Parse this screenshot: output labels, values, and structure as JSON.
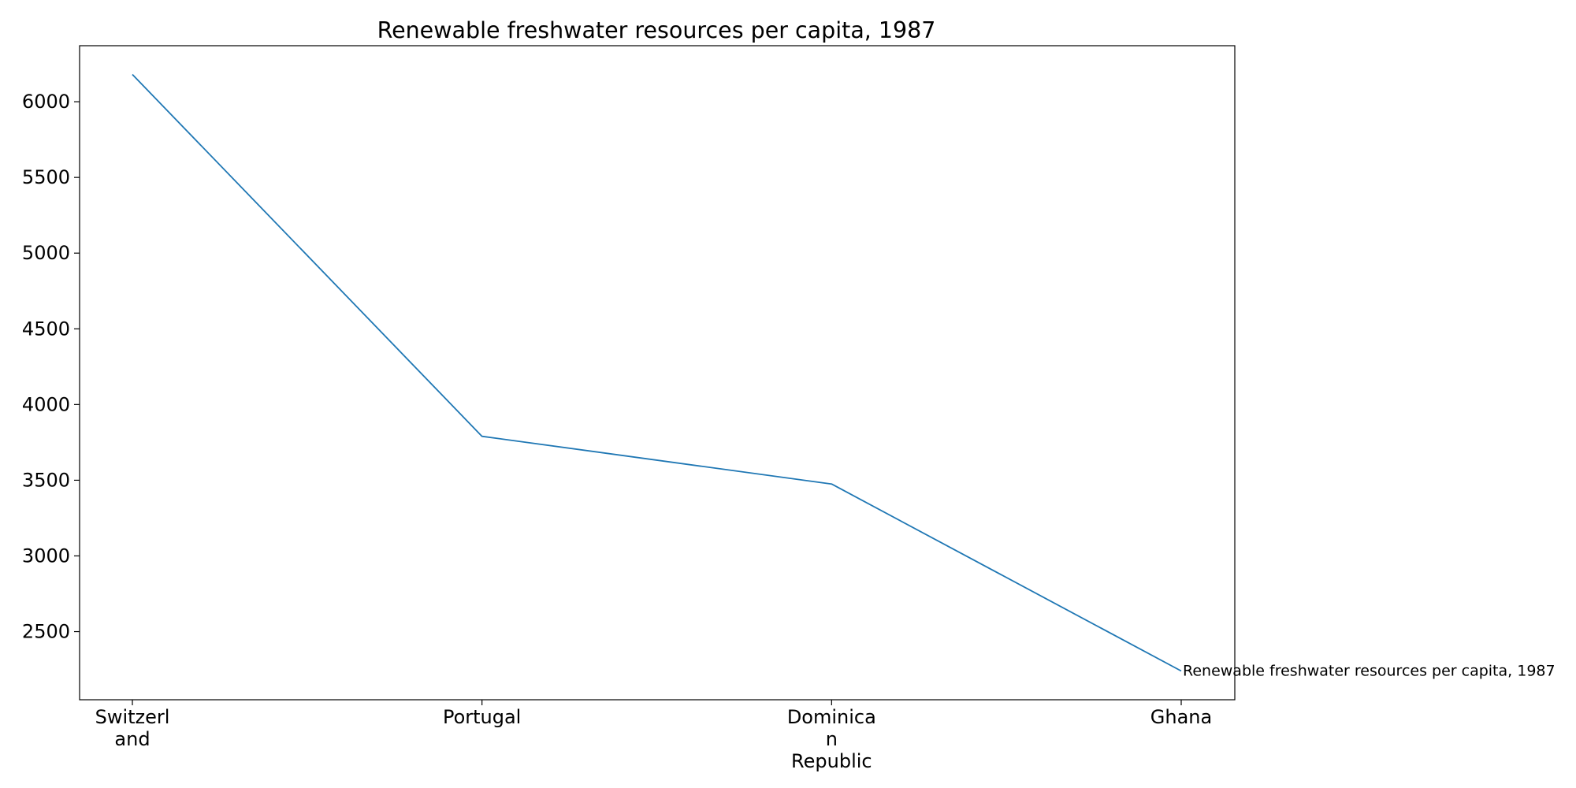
{
  "chart_data": {
    "type": "line",
    "title": "Renewable freshwater resources per capita, 1987",
    "xlabel": "",
    "ylabel": "",
    "categories": [
      "Switzerland",
      "Portugal",
      "Dominican Republic",
      "Ghana"
    ],
    "category_tick_lines": [
      [
        "Switzerl",
        "and"
      ],
      [
        "Portugal"
      ],
      [
        "Dominica",
        "n",
        "Republic"
      ],
      [
        "Ghana"
      ]
    ],
    "series": [
      {
        "name": "Renewable freshwater resources per capita, 1987",
        "values": [
          6180,
          3790,
          3475,
          2240
        ],
        "color": "#1f77b4"
      }
    ],
    "ylim": [
      2050,
      6370
    ],
    "yticks": [
      2500,
      3000,
      3500,
      4000,
      4500,
      5000,
      5500,
      6000
    ],
    "grid": false,
    "legend": "none",
    "end_label": true
  }
}
